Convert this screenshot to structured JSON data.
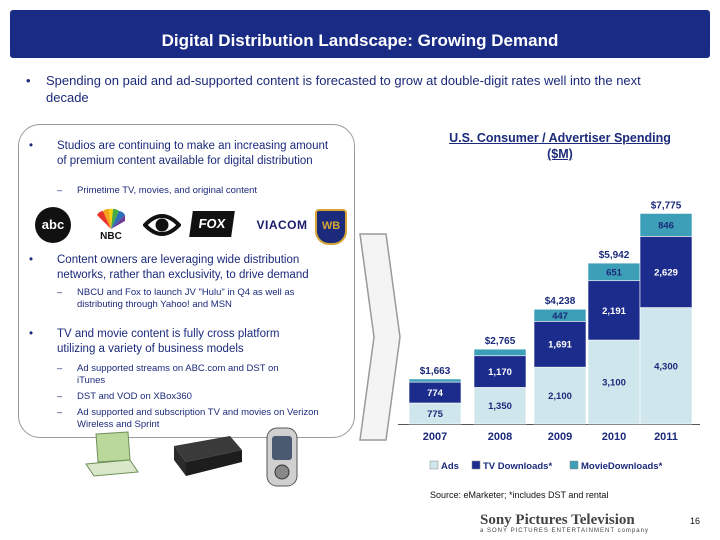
{
  "title": "Digital Distribution Landscape: Growing Demand",
  "main_bullet": "Spending on paid and ad-supported content is forecasted to grow at double-digit rates well into the next decade",
  "bullet_char": "•",
  "dash_char": "–",
  "panel": {
    "b1": "Studios are continuing to make an increasing amount of premium content available for digital distribution",
    "b1_sub": "Primetime TV, movies, and original content",
    "b2": "Content owners are leveraging wide distribution networks, rather than exclusivity, to drive demand",
    "b2_sub": "NBCU and Fox to launch JV \"Hulu\" in Q4 as well as distributing through Yahoo! and MSN",
    "b3": "TV and movie content is fully cross platform utilizing a variety of business models",
    "b3_sub1": "Ad supported streams on ABC.com and DST on iTunes",
    "b3_sub2": "DST and VOD on XBox360",
    "b3_sub3": "Ad supported and subscription TV and movies on Verizon Wireless and Sprint"
  },
  "logos": {
    "abc": "abc",
    "nbc": "NBC",
    "fox": "FOX",
    "viacom": "VIACOM",
    "wb": "WB"
  },
  "colors": {
    "title_bg": "#1a2b86",
    "ads": "#cfe6ec",
    "tv": "#1c2c8c",
    "movie": "#3d9fb7"
  },
  "chart_data": {
    "type": "bar",
    "stacked": true,
    "title": "U.S. Consumer / Advertiser Spending ($M)",
    "categories": [
      "2007",
      "2008",
      "2009",
      "2010",
      "2011"
    ],
    "series": [
      {
        "name": "Ads",
        "values": [
          775,
          1350,
          2100,
          3100,
          4300
        ],
        "labels": [
          "775",
          "1,350",
          "2,100",
          "3,100",
          "4,300"
        ]
      },
      {
        "name": "TV Downloads*",
        "values": [
          774,
          1170,
          1691,
          2191,
          2629
        ],
        "labels": [
          "774",
          "1,170",
          "1,691",
          "2,191",
          "2,629"
        ]
      },
      {
        "name": "Movie Downloads*",
        "values": [
          114,
          245,
          447,
          651,
          846
        ],
        "labels": [
          "",
          "",
          "447",
          "651",
          "846"
        ]
      }
    ],
    "totals": [
      "$1,663",
      "$2,765",
      "$4,238",
      "$5,942",
      "$7,775"
    ],
    "legend": [
      "Ads",
      "TV Downloads*",
      "MovieDownloads*"
    ],
    "legend_position": "bottom",
    "source": "Source: eMarketer; *includes DST and rental"
  },
  "footer": {
    "brand": "Sony Pictures Television",
    "brand_sub": "a SONY PICTURES ENTERTAINMENT company",
    "page": "16"
  }
}
